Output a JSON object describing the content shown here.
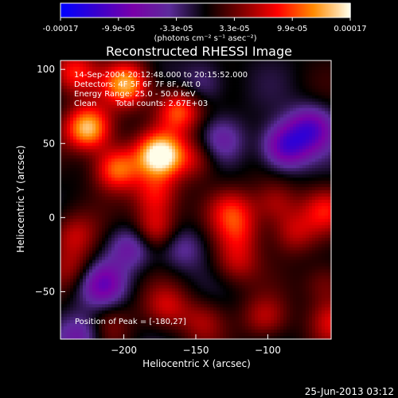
{
  "app": {
    "timestamp": "25-Jun-2013 03:12"
  },
  "colors": {
    "background": "#000000",
    "text": "#ffffff",
    "axis": "#ffffff",
    "colorbar_stops": [
      "#0000ff",
      "#3a00cc",
      "#7a00a8",
      "#5c2b9b",
      "#000000",
      "#7d0000",
      "#ff0000",
      "#ff8a00",
      "#fffde8"
    ]
  },
  "colorbar": {
    "tick_labels": [
      "-0.00017",
      "-9.9e-05",
      "-3.3e-05",
      "3.3e-05",
      "9.9e-05",
      "0.00017"
    ],
    "unit_label": "(photons cm⁻² s⁻¹ asec⁻²)"
  },
  "chart_data": {
    "type": "heatmap",
    "title": "Reconstructed RHESSI Image",
    "xlabel": "Heliocentric X (arcsec)",
    "ylabel": "Heliocentric Y (arcsec)",
    "xlim": [
      -244,
      -56
    ],
    "ylim": [
      -82,
      106
    ],
    "xticks": [
      -200,
      -150,
      -100
    ],
    "yticks": [
      100,
      50,
      0,
      -50
    ],
    "annotations": {
      "time_range": "14-Sep-2004 20:12:48.000 to 20:15:52.000",
      "detectors": "Detectors: 4F 5F 6F 7F 8F, Att 0",
      "energy_range": "Energy Range: 25.0 - 50.0 keV",
      "method": "Clean",
      "total_counts": "Total counts: 2.67E+03",
      "peak": "Position of Peak = [-180,27]"
    },
    "peak_position": [
      -180,
      27
    ],
    "value_range": [
      -0.00017,
      0.00017
    ],
    "sources": [
      {
        "x": -225,
        "y": 60,
        "value": 0.000155
      },
      {
        "x": -175,
        "y": 42,
        "value": 0.00017
      },
      {
        "x": -198,
        "y": 90,
        "value": 0.00014
      },
      {
        "x": -205,
        "y": 33,
        "value": 0.00012
      },
      {
        "x": -162,
        "y": 72,
        "value": 0.00011
      },
      {
        "x": -235,
        "y": 98,
        "value": 9e-05
      },
      {
        "x": -178,
        "y": 15,
        "value": 8e-05
      },
      {
        "x": -235,
        "y": -12,
        "value": 6e-05
      },
      {
        "x": -150,
        "y": 40,
        "value": 6e-05
      },
      {
        "x": -178,
        "y": -8,
        "value": 9e-05
      },
      {
        "x": -125,
        "y": 5,
        "value": 7e-05
      },
      {
        "x": -120,
        "y": -10,
        "value": 6e-05
      },
      {
        "x": -95,
        "y": 10,
        "value": 6e-05
      },
      {
        "x": -122,
        "y": -30,
        "value": 6e-05
      },
      {
        "x": -82,
        "y": -10,
        "value": 6e-05
      },
      {
        "x": -60,
        "y": 5,
        "value": 7e-05
      },
      {
        "x": -60,
        "y": -45,
        "value": 5e-05
      },
      {
        "x": -102,
        "y": -68,
        "value": 6e-05
      },
      {
        "x": -55,
        "y": -70,
        "value": 7e-05
      },
      {
        "x": -170,
        "y": -60,
        "value": 6e-05
      },
      {
        "x": -145,
        "y": -70,
        "value": 5e-05
      },
      {
        "x": -210,
        "y": -72,
        "value": 4e-05
      },
      {
        "x": -235,
        "y": -35,
        "value": 5e-05
      },
      {
        "x": -88,
        "y": 48,
        "value": -0.00012
      },
      {
        "x": -70,
        "y": 60,
        "value": -0.0001
      },
      {
        "x": -132,
        "y": 52,
        "value": -5e-05
      },
      {
        "x": -215,
        "y": -45,
        "value": -9e-05
      },
      {
        "x": -195,
        "y": -20,
        "value": -7e-05
      },
      {
        "x": -160,
        "y": -20,
        "value": -5e-05
      },
      {
        "x": -145,
        "y": 90,
        "value": -5e-05
      },
      {
        "x": -230,
        "y": -80,
        "value": -7e-05
      }
    ]
  }
}
